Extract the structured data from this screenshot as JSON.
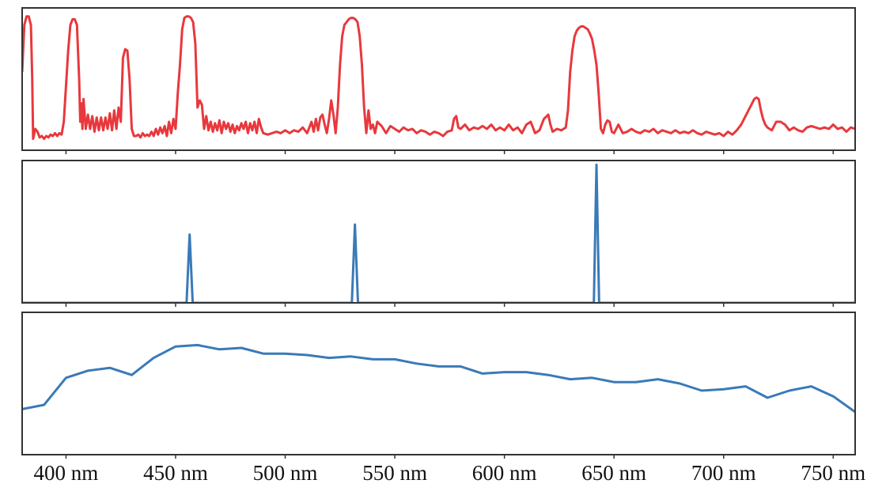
{
  "chart_data": [
    {
      "type": "line",
      "xlim": [
        380,
        760
      ],
      "ylim": [
        0,
        1
      ],
      "grid": false,
      "x": [
        380,
        381,
        382,
        383,
        384,
        384.6,
        385,
        386,
        387,
        388,
        389,
        390,
        391,
        392,
        393,
        394,
        395,
        396,
        397,
        398,
        399,
        400,
        401,
        402,
        403,
        404,
        405,
        406,
        406.5,
        407,
        407.5,
        408,
        409,
        410,
        411,
        412,
        413,
        414,
        415,
        416,
        417,
        418,
        419,
        420,
        421,
        422,
        423,
        424,
        425,
        426,
        427,
        428,
        429,
        430,
        431,
        432,
        433,
        434,
        435,
        436,
        437,
        438,
        439,
        440,
        441,
        442,
        443,
        444,
        445,
        446,
        447,
        448,
        449,
        450,
        451,
        452,
        453,
        454,
        455,
        456,
        457,
        458,
        459,
        460,
        461,
        462,
        463,
        464,
        465,
        466,
        467,
        468,
        469,
        470,
        471,
        472,
        473,
        474,
        475,
        476,
        477,
        478,
        479,
        480,
        481,
        482,
        483,
        484,
        485,
        486,
        487,
        488,
        489,
        490,
        492,
        494,
        496,
        498,
        500,
        502,
        504,
        506,
        508,
        510,
        512,
        513,
        514,
        515,
        516,
        517,
        518,
        519,
        520,
        521,
        522,
        523,
        524,
        525,
        526,
        527,
        528,
        529,
        530,
        531,
        532,
        533,
        534,
        535,
        536,
        537,
        538,
        539,
        540,
        541,
        542,
        544,
        546,
        548,
        550,
        552,
        554,
        556,
        558,
        560,
        562,
        564,
        566,
        568,
        570,
        572,
        574,
        576,
        577,
        578,
        579,
        580,
        582,
        584,
        586,
        588,
        590,
        592,
        594,
        596,
        598,
        600,
        602,
        604,
        606,
        608,
        610,
        612,
        614,
        616,
        618,
        620,
        621,
        622,
        624,
        626,
        628,
        629,
        630,
        631,
        632,
        633,
        634,
        635,
        636,
        637,
        638,
        639,
        640,
        641,
        642,
        643,
        644,
        645,
        646,
        647,
        648,
        649,
        650,
        652,
        654,
        656,
        658,
        660,
        662,
        664,
        666,
        668,
        670,
        672,
        674,
        676,
        678,
        680,
        682,
        684,
        686,
        688,
        690,
        692,
        694,
        696,
        698,
        700,
        702,
        704,
        706,
        708,
        710,
        712,
        714,
        715,
        716,
        717,
        718,
        719,
        720,
        722,
        724,
        726,
        728,
        730,
        732,
        734,
        736,
        738,
        740,
        742,
        744,
        746,
        748,
        750,
        752,
        754,
        756,
        758,
        760
      ],
      "series": [
        {
          "color": "#e8383d",
          "values": [
            0.55,
            0.88,
            0.94,
            0.94,
            0.88,
            0.5,
            0.08,
            0.15,
            0.13,
            0.09,
            0.1,
            0.08,
            0.1,
            0.09,
            0.11,
            0.1,
            0.12,
            0.1,
            0.12,
            0.11,
            0.2,
            0.45,
            0.7,
            0.88,
            0.92,
            0.92,
            0.88,
            0.5,
            0.2,
            0.33,
            0.15,
            0.36,
            0.15,
            0.25,
            0.15,
            0.24,
            0.13,
            0.23,
            0.14,
            0.23,
            0.14,
            0.23,
            0.15,
            0.26,
            0.14,
            0.28,
            0.15,
            0.3,
            0.2,
            0.65,
            0.71,
            0.7,
            0.5,
            0.15,
            0.1,
            0.1,
            0.11,
            0.09,
            0.12,
            0.1,
            0.11,
            0.1,
            0.13,
            0.1,
            0.15,
            0.11,
            0.16,
            0.12,
            0.17,
            0.1,
            0.2,
            0.12,
            0.22,
            0.15,
            0.4,
            0.6,
            0.85,
            0.93,
            0.94,
            0.94,
            0.93,
            0.9,
            0.75,
            0.3,
            0.35,
            0.32,
            0.15,
            0.24,
            0.14,
            0.2,
            0.13,
            0.19,
            0.14,
            0.21,
            0.12,
            0.2,
            0.15,
            0.19,
            0.13,
            0.18,
            0.12,
            0.17,
            0.14,
            0.19,
            0.15,
            0.2,
            0.12,
            0.19,
            0.14,
            0.2,
            0.12,
            0.22,
            0.16,
            0.12,
            0.11,
            0.12,
            0.13,
            0.12,
            0.14,
            0.12,
            0.14,
            0.13,
            0.16,
            0.12,
            0.2,
            0.13,
            0.22,
            0.14,
            0.23,
            0.25,
            0.18,
            0.12,
            0.22,
            0.35,
            0.25,
            0.12,
            0.3,
            0.6,
            0.8,
            0.88,
            0.9,
            0.92,
            0.93,
            0.93,
            0.92,
            0.9,
            0.8,
            0.6,
            0.3,
            0.12,
            0.28,
            0.15,
            0.18,
            0.12,
            0.2,
            0.17,
            0.12,
            0.17,
            0.15,
            0.13,
            0.16,
            0.14,
            0.15,
            0.12,
            0.14,
            0.13,
            0.11,
            0.13,
            0.12,
            0.1,
            0.13,
            0.14,
            0.22,
            0.24,
            0.16,
            0.15,
            0.18,
            0.14,
            0.16,
            0.15,
            0.17,
            0.15,
            0.18,
            0.14,
            0.16,
            0.14,
            0.18,
            0.14,
            0.16,
            0.12,
            0.18,
            0.2,
            0.12,
            0.14,
            0.22,
            0.25,
            0.18,
            0.13,
            0.15,
            0.14,
            0.16,
            0.28,
            0.55,
            0.7,
            0.8,
            0.84,
            0.86,
            0.87,
            0.87,
            0.86,
            0.85,
            0.82,
            0.78,
            0.7,
            0.6,
            0.4,
            0.15,
            0.12,
            0.18,
            0.21,
            0.2,
            0.13,
            0.12,
            0.18,
            0.12,
            0.13,
            0.15,
            0.13,
            0.12,
            0.14,
            0.13,
            0.15,
            0.12,
            0.14,
            0.13,
            0.12,
            0.14,
            0.12,
            0.13,
            0.12,
            0.14,
            0.12,
            0.11,
            0.13,
            0.12,
            0.11,
            0.12,
            0.1,
            0.13,
            0.11,
            0.14,
            0.18,
            0.24,
            0.3,
            0.36,
            0.37,
            0.36,
            0.28,
            0.22,
            0.18,
            0.16,
            0.14,
            0.2,
            0.2,
            0.18,
            0.14,
            0.16,
            0.14,
            0.13,
            0.16,
            0.17,
            0.16,
            0.15,
            0.16,
            0.15,
            0.18,
            0.15,
            0.16,
            0.13,
            0.16,
            0.15
          ]
        }
      ]
    },
    {
      "type": "line",
      "xlim": [
        380,
        760
      ],
      "ylim": [
        0,
        1
      ],
      "grid": false,
      "x": [
        380,
        455,
        456.4,
        457.8,
        530.4,
        531.8,
        533.2,
        640.8,
        642,
        643.2,
        760
      ],
      "series": [
        {
          "color": "#3a7ab8",
          "values": [
            0,
            0,
            0.48,
            0,
            0,
            0.55,
            0,
            0,
            0.97,
            0,
            0
          ]
        }
      ]
    },
    {
      "type": "line",
      "xlim": [
        380,
        760
      ],
      "ylim": [
        0,
        1
      ],
      "grid": false,
      "x": [
        380,
        390,
        400,
        410,
        420,
        430,
        440,
        450,
        460,
        470,
        480,
        490,
        500,
        510,
        520,
        530,
        540,
        550,
        560,
        570,
        580,
        590,
        600,
        610,
        620,
        630,
        640,
        650,
        660,
        670,
        680,
        690,
        700,
        710,
        720,
        730,
        740,
        750,
        760
      ],
      "series": [
        {
          "color": "#3a7ab8",
          "values": [
            0.32,
            0.35,
            0.54,
            0.59,
            0.61,
            0.56,
            0.68,
            0.76,
            0.77,
            0.74,
            0.75,
            0.71,
            0.71,
            0.7,
            0.68,
            0.69,
            0.67,
            0.67,
            0.64,
            0.62,
            0.62,
            0.57,
            0.58,
            0.58,
            0.56,
            0.53,
            0.54,
            0.51,
            0.51,
            0.53,
            0.5,
            0.45,
            0.46,
            0.48,
            0.4,
            0.45,
            0.48,
            0.41,
            0.3
          ]
        }
      ],
      "xticks": [
        {
          "value": 400,
          "label": "400 nm"
        },
        {
          "value": 450,
          "label": "450 nm"
        },
        {
          "value": 500,
          "label": "500 nm"
        },
        {
          "value": 550,
          "label": "550 nm"
        },
        {
          "value": 600,
          "label": "600 nm"
        },
        {
          "value": 650,
          "label": "650 nm"
        },
        {
          "value": 700,
          "label": "700 nm"
        },
        {
          "value": 750,
          "label": "750 nm"
        }
      ]
    }
  ]
}
